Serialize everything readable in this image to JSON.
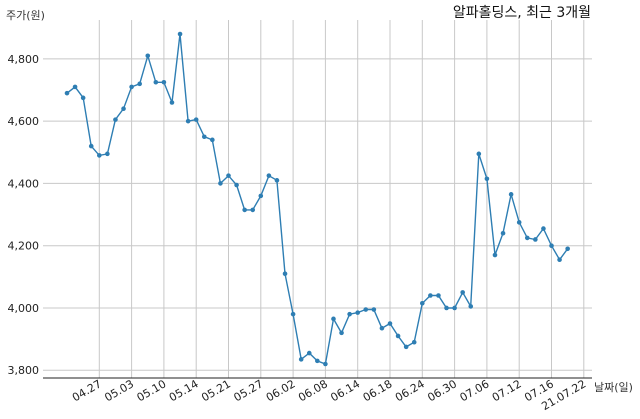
{
  "chart_data": {
    "type": "line",
    "title": "알파홀딩스, 최근 3개월",
    "ylabel": "주가(원)",
    "xlabel": "날짜(일)",
    "ylim": [
      3775,
      4925
    ],
    "grid": true,
    "y_ticks": [
      3800,
      4000,
      4200,
      4400,
      4600,
      4800
    ],
    "y_tick_labels": [
      "3,800",
      "4,000",
      "4,200",
      "4,400",
      "4,600",
      "4,800"
    ],
    "x_tick_labels": [
      "04.27",
      "05.03",
      "05.10",
      "05.14",
      "05.21",
      "05.27",
      "06.02",
      "06.08",
      "06.14",
      "06.18",
      "06.24",
      "06.30",
      "07.06",
      "07.12",
      "07.16",
      "21.07.22"
    ],
    "x_tick_positions": [
      4,
      8,
      12,
      16,
      20,
      24,
      28,
      32,
      36,
      40,
      44,
      48,
      52,
      56,
      60,
      64
    ],
    "series_color": "#2e7eb3",
    "series": [
      {
        "values": [
          4690,
          4710,
          4675,
          4520,
          4490,
          4495,
          4605,
          4640,
          4710,
          4720,
          4810,
          4725,
          4725,
          4660,
          4880,
          4600,
          4605,
          4550,
          4540,
          4400,
          4425,
          4395,
          4315,
          4315,
          4360,
          4425,
          4410,
          4110,
          3980,
          3835,
          3855,
          3830,
          3820,
          3965,
          3920,
          3980,
          3985,
          3995,
          3995,
          3935,
          3950,
          3910,
          3875,
          3890,
          4015,
          4040,
          4040,
          4000,
          4000,
          4050,
          4005,
          4495,
          4415,
          4170,
          4240,
          4365,
          4275,
          4225,
          4220,
          4255,
          4200,
          4155,
          4190
        ]
      }
    ]
  }
}
